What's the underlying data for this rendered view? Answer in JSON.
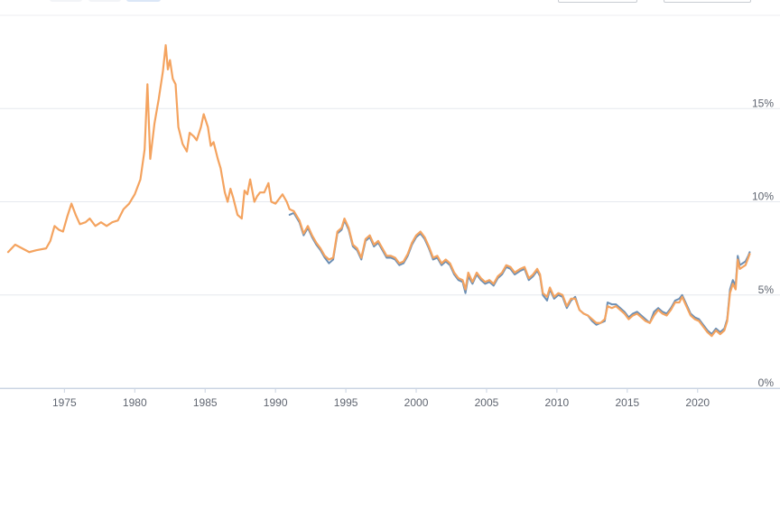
{
  "chart_data": {
    "type": "line",
    "title": "",
    "xlabel": "",
    "ylabel": "",
    "xlim": [
      1971.0,
      2023.8
    ],
    "ylim": [
      0,
      20
    ],
    "grid": true,
    "legend": "none",
    "x_ticks": [
      1975,
      1980,
      1985,
      1990,
      1995,
      2000,
      2005,
      2010,
      2015,
      2020
    ],
    "y_ticks": [
      {
        "value": 0,
        "label": "0%"
      },
      {
        "value": 5,
        "label": "5%"
      },
      {
        "value": 10,
        "label": "10%"
      },
      {
        "value": 15,
        "label": "15%"
      }
    ],
    "series": [
      {
        "color": "#f4a35f",
        "points": [
          [
            1971.0,
            7.3
          ],
          [
            1971.5,
            7.7
          ],
          [
            1972.0,
            7.5
          ],
          [
            1972.5,
            7.3
          ],
          [
            1973.0,
            7.4
          ],
          [
            1973.7,
            7.5
          ],
          [
            1974.0,
            7.9
          ],
          [
            1974.3,
            8.7
          ],
          [
            1974.6,
            8.5
          ],
          [
            1974.9,
            8.4
          ],
          [
            1975.2,
            9.2
          ],
          [
            1975.5,
            9.9
          ],
          [
            1975.8,
            9.3
          ],
          [
            1976.1,
            8.8
          ],
          [
            1976.5,
            8.9
          ],
          [
            1976.8,
            9.1
          ],
          [
            1977.2,
            8.7
          ],
          [
            1977.6,
            8.9
          ],
          [
            1978.0,
            8.7
          ],
          [
            1978.4,
            8.9
          ],
          [
            1978.8,
            9.0
          ],
          [
            1979.2,
            9.6
          ],
          [
            1979.6,
            9.9
          ],
          [
            1980.0,
            10.4
          ],
          [
            1980.4,
            11.2
          ],
          [
            1980.7,
            12.8
          ],
          [
            1980.9,
            16.3
          ],
          [
            1981.1,
            12.3
          ],
          [
            1981.4,
            14.2
          ],
          [
            1981.7,
            15.5
          ],
          [
            1982.0,
            17.0
          ],
          [
            1982.2,
            18.4
          ],
          [
            1982.35,
            17.1
          ],
          [
            1982.5,
            17.6
          ],
          [
            1982.7,
            16.6
          ],
          [
            1982.9,
            16.3
          ],
          [
            1983.1,
            14.0
          ],
          [
            1983.4,
            13.1
          ],
          [
            1983.7,
            12.7
          ],
          [
            1983.9,
            13.7
          ],
          [
            1984.2,
            13.5
          ],
          [
            1984.4,
            13.3
          ],
          [
            1984.7,
            14.0
          ],
          [
            1984.9,
            14.7
          ],
          [
            1985.2,
            14.0
          ],
          [
            1985.4,
            13.0
          ],
          [
            1985.6,
            13.2
          ],
          [
            1985.9,
            12.3
          ],
          [
            1986.1,
            11.8
          ],
          [
            1986.4,
            10.5
          ],
          [
            1986.6,
            10.0
          ],
          [
            1986.8,
            10.7
          ],
          [
            1987.0,
            10.2
          ],
          [
            1987.3,
            9.3
          ],
          [
            1987.6,
            9.1
          ],
          [
            1987.8,
            10.6
          ],
          [
            1988.0,
            10.4
          ],
          [
            1988.2,
            11.2
          ],
          [
            1988.5,
            10.0
          ],
          [
            1988.7,
            10.3
          ],
          [
            1988.9,
            10.5
          ],
          [
            1989.2,
            10.5
          ],
          [
            1989.5,
            11.0
          ],
          [
            1989.7,
            10.0
          ],
          [
            1990.0,
            9.9
          ],
          [
            1990.2,
            10.1
          ],
          [
            1990.5,
            10.4
          ],
          [
            1990.8,
            10.0
          ],
          [
            1991.0,
            9.6
          ],
          [
            1991.3,
            9.5
          ],
          [
            1991.7,
            9.0
          ],
          [
            1992.0,
            8.3
          ],
          [
            1992.3,
            8.7
          ],
          [
            1992.6,
            8.2
          ],
          [
            1992.9,
            7.8
          ],
          [
            1993.2,
            7.5
          ],
          [
            1993.5,
            7.1
          ],
          [
            1993.8,
            6.9
          ],
          [
            1994.1,
            7.0
          ],
          [
            1994.4,
            8.4
          ],
          [
            1994.7,
            8.6
          ],
          [
            1994.9,
            9.1
          ],
          [
            1995.2,
            8.6
          ],
          [
            1995.5,
            7.7
          ],
          [
            1995.8,
            7.5
          ],
          [
            1996.1,
            7.0
          ],
          [
            1996.4,
            8.0
          ],
          [
            1996.7,
            8.2
          ],
          [
            1997.0,
            7.7
          ],
          [
            1997.3,
            7.9
          ],
          [
            1997.6,
            7.5
          ],
          [
            1997.9,
            7.1
          ],
          [
            1998.2,
            7.1
          ],
          [
            1998.5,
            7.0
          ],
          [
            1998.8,
            6.7
          ],
          [
            1999.1,
            6.8
          ],
          [
            1999.4,
            7.2
          ],
          [
            1999.7,
            7.8
          ],
          [
            2000.0,
            8.2
          ],
          [
            2000.3,
            8.4
          ],
          [
            2000.6,
            8.1
          ],
          [
            2000.9,
            7.6
          ],
          [
            2001.2,
            7.0
          ],
          [
            2001.5,
            7.1
          ],
          [
            2001.8,
            6.7
          ],
          [
            2002.1,
            6.9
          ],
          [
            2002.4,
            6.7
          ],
          [
            2002.7,
            6.2
          ],
          [
            2003.0,
            5.9
          ],
          [
            2003.3,
            5.8
          ],
          [
            2003.5,
            5.3
          ],
          [
            2003.7,
            6.2
          ],
          [
            2004.0,
            5.7
          ],
          [
            2004.3,
            6.2
          ],
          [
            2004.6,
            5.9
          ],
          [
            2004.9,
            5.7
          ],
          [
            2005.2,
            5.8
          ],
          [
            2005.5,
            5.6
          ],
          [
            2005.8,
            6.0
          ],
          [
            2006.1,
            6.2
          ],
          [
            2006.4,
            6.6
          ],
          [
            2006.7,
            6.5
          ],
          [
            2007.0,
            6.2
          ],
          [
            2007.4,
            6.4
          ],
          [
            2007.7,
            6.5
          ],
          [
            2008.0,
            5.9
          ],
          [
            2008.3,
            6.1
          ],
          [
            2008.6,
            6.4
          ],
          [
            2008.8,
            6.1
          ],
          [
            2009.0,
            5.1
          ],
          [
            2009.3,
            4.9
          ],
          [
            2009.5,
            5.4
          ],
          [
            2009.8,
            4.9
          ],
          [
            2010.1,
            5.1
          ],
          [
            2010.4,
            5.0
          ],
          [
            2010.7,
            4.4
          ],
          [
            2011.0,
            4.8
          ],
          [
            2011.3,
            4.8
          ],
          [
            2011.6,
            4.2
          ],
          [
            2011.9,
            4.0
          ],
          [
            2012.2,
            3.9
          ],
          [
            2012.5,
            3.7
          ],
          [
            2012.8,
            3.5
          ],
          [
            2013.1,
            3.5
          ],
          [
            2013.4,
            3.7
          ],
          [
            2013.6,
            4.4
          ],
          [
            2013.9,
            4.3
          ],
          [
            2014.2,
            4.4
          ],
          [
            2014.5,
            4.2
          ],
          [
            2014.8,
            4.0
          ],
          [
            2015.1,
            3.7
          ],
          [
            2015.4,
            3.9
          ],
          [
            2015.7,
            4.0
          ],
          [
            2016.0,
            3.8
          ],
          [
            2016.3,
            3.6
          ],
          [
            2016.6,
            3.5
          ],
          [
            2016.9,
            3.9
          ],
          [
            2017.2,
            4.2
          ],
          [
            2017.5,
            4.0
          ],
          [
            2017.8,
            3.9
          ],
          [
            2018.1,
            4.2
          ],
          [
            2018.4,
            4.6
          ],
          [
            2018.7,
            4.6
          ],
          [
            2018.9,
            4.9
          ],
          [
            2019.2,
            4.4
          ],
          [
            2019.5,
            3.9
          ],
          [
            2019.8,
            3.7
          ],
          [
            2020.1,
            3.6
          ],
          [
            2020.4,
            3.3
          ],
          [
            2020.7,
            3.0
          ],
          [
            2021.0,
            2.8
          ],
          [
            2021.3,
            3.1
          ],
          [
            2021.6,
            2.9
          ],
          [
            2021.9,
            3.1
          ],
          [
            2022.1,
            3.6
          ],
          [
            2022.3,
            5.1
          ],
          [
            2022.5,
            5.6
          ],
          [
            2022.7,
            5.3
          ],
          [
            2022.85,
            6.9
          ],
          [
            2023.0,
            6.4
          ],
          [
            2023.2,
            6.5
          ],
          [
            2023.4,
            6.6
          ],
          [
            2023.6,
            7.0
          ],
          [
            2023.7,
            7.2
          ]
        ]
      },
      {
        "color": "#6b8fb5",
        "points": [
          [
            1991.0,
            9.3
          ],
          [
            1991.3,
            9.4
          ],
          [
            1991.7,
            8.9
          ],
          [
            1992.0,
            8.2
          ],
          [
            1992.3,
            8.6
          ],
          [
            1992.6,
            8.1
          ],
          [
            1992.9,
            7.7
          ],
          [
            1993.2,
            7.4
          ],
          [
            1993.5,
            7.0
          ],
          [
            1993.8,
            6.7
          ],
          [
            1994.1,
            6.9
          ],
          [
            1994.4,
            8.3
          ],
          [
            1994.7,
            8.5
          ],
          [
            1994.9,
            9.0
          ],
          [
            1995.2,
            8.5
          ],
          [
            1995.5,
            7.6
          ],
          [
            1995.8,
            7.4
          ],
          [
            1996.1,
            6.9
          ],
          [
            1996.4,
            7.9
          ],
          [
            1996.7,
            8.1
          ],
          [
            1997.0,
            7.6
          ],
          [
            1997.3,
            7.8
          ],
          [
            1997.6,
            7.4
          ],
          [
            1997.9,
            7.0
          ],
          [
            1998.2,
            7.0
          ],
          [
            1998.5,
            6.9
          ],
          [
            1998.8,
            6.6
          ],
          [
            1999.1,
            6.7
          ],
          [
            1999.4,
            7.1
          ],
          [
            1999.7,
            7.7
          ],
          [
            2000.0,
            8.1
          ],
          [
            2000.3,
            8.3
          ],
          [
            2000.6,
            8.0
          ],
          [
            2000.9,
            7.5
          ],
          [
            2001.2,
            6.9
          ],
          [
            2001.5,
            7.0
          ],
          [
            2001.8,
            6.6
          ],
          [
            2002.1,
            6.8
          ],
          [
            2002.4,
            6.6
          ],
          [
            2002.7,
            6.1
          ],
          [
            2003.0,
            5.8
          ],
          [
            2003.3,
            5.7
          ],
          [
            2003.5,
            5.1
          ],
          [
            2003.7,
            6.0
          ],
          [
            2004.0,
            5.6
          ],
          [
            2004.3,
            6.1
          ],
          [
            2004.6,
            5.8
          ],
          [
            2004.9,
            5.6
          ],
          [
            2005.2,
            5.7
          ],
          [
            2005.5,
            5.5
          ],
          [
            2005.8,
            5.9
          ],
          [
            2006.1,
            6.1
          ],
          [
            2006.4,
            6.5
          ],
          [
            2006.7,
            6.4
          ],
          [
            2007.0,
            6.1
          ],
          [
            2007.4,
            6.3
          ],
          [
            2007.7,
            6.4
          ],
          [
            2008.0,
            5.8
          ],
          [
            2008.3,
            6.0
          ],
          [
            2008.6,
            6.3
          ],
          [
            2008.8,
            6.0
          ],
          [
            2009.0,
            5.0
          ],
          [
            2009.3,
            4.7
          ],
          [
            2009.5,
            5.3
          ],
          [
            2009.8,
            4.8
          ],
          [
            2010.1,
            5.0
          ],
          [
            2010.4,
            4.9
          ],
          [
            2010.7,
            4.3
          ],
          [
            2011.0,
            4.7
          ],
          [
            2011.3,
            4.9
          ],
          [
            2011.6,
            4.2
          ],
          [
            2011.9,
            4.0
          ],
          [
            2012.2,
            3.9
          ],
          [
            2012.5,
            3.6
          ],
          [
            2012.8,
            3.4
          ],
          [
            2013.1,
            3.5
          ],
          [
            2013.4,
            3.6
          ],
          [
            2013.6,
            4.6
          ],
          [
            2013.9,
            4.5
          ],
          [
            2014.2,
            4.5
          ],
          [
            2014.5,
            4.3
          ],
          [
            2014.8,
            4.1
          ],
          [
            2015.1,
            3.8
          ],
          [
            2015.4,
            4.0
          ],
          [
            2015.7,
            4.1
          ],
          [
            2016.0,
            3.9
          ],
          [
            2016.3,
            3.7
          ],
          [
            2016.6,
            3.5
          ],
          [
            2016.9,
            4.1
          ],
          [
            2017.2,
            4.3
          ],
          [
            2017.5,
            4.1
          ],
          [
            2017.8,
            4.0
          ],
          [
            2018.1,
            4.3
          ],
          [
            2018.4,
            4.7
          ],
          [
            2018.7,
            4.8
          ],
          [
            2018.9,
            5.0
          ],
          [
            2019.2,
            4.5
          ],
          [
            2019.5,
            4.0
          ],
          [
            2019.8,
            3.8
          ],
          [
            2020.1,
            3.7
          ],
          [
            2020.4,
            3.4
          ],
          [
            2020.7,
            3.1
          ],
          [
            2021.0,
            2.9
          ],
          [
            2021.3,
            3.2
          ],
          [
            2021.6,
            3.0
          ],
          [
            2021.9,
            3.2
          ],
          [
            2022.1,
            3.7
          ],
          [
            2022.3,
            5.3
          ],
          [
            2022.5,
            5.8
          ],
          [
            2022.7,
            5.5
          ],
          [
            2022.85,
            7.1
          ],
          [
            2023.0,
            6.6
          ],
          [
            2023.2,
            6.7
          ],
          [
            2023.4,
            6.8
          ],
          [
            2023.6,
            7.1
          ],
          [
            2023.7,
            7.3
          ]
        ]
      }
    ]
  }
}
